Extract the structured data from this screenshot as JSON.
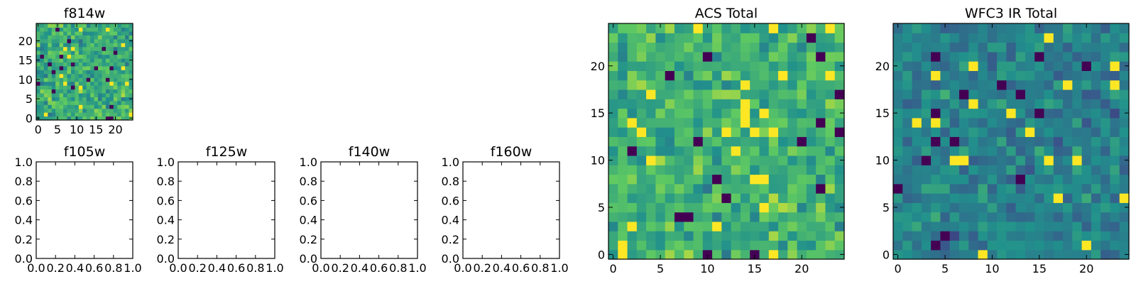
{
  "palette": [
    "#440154",
    "#3b528b",
    "#21918c",
    "#5ec962",
    "#fde725"
  ],
  "chart_data": [
    {
      "id": "f814w",
      "type": "heatmap",
      "title": "f814w",
      "grid_size": 25,
      "xlim": [
        0,
        25
      ],
      "ylim": [
        0,
        25
      ],
      "xticks": [
        0,
        5,
        10,
        15,
        20
      ],
      "yticks": [
        0,
        5,
        10,
        15,
        20
      ],
      "xtick_labels": [
        "0",
        "5",
        "10",
        "15",
        "20"
      ],
      "ytick_labels": [
        "0",
        "5",
        "10",
        "15",
        "20"
      ],
      "pixel_distribution": "noise",
      "seed": 7,
      "mean": 0.62,
      "spread": 0.18
    },
    {
      "id": "f105w",
      "type": "empty",
      "title": "f105w",
      "xlim": [
        0,
        1
      ],
      "ylim": [
        0,
        1
      ],
      "xticks": [
        0,
        0.2,
        0.4,
        0.6,
        0.8,
        1.0
      ],
      "yticks": [
        0,
        0.2,
        0.4,
        0.6,
        0.8,
        1.0
      ],
      "xtick_labels": [
        "0.0",
        "0.2",
        "0.4",
        "0.6",
        "0.8",
        "1.0"
      ],
      "ytick_labels": [
        "0.0",
        "0.2",
        "0.4",
        "0.6",
        "0.8",
        "1.0"
      ]
    },
    {
      "id": "f125w",
      "type": "empty",
      "title": "f125w",
      "xlim": [
        0,
        1
      ],
      "ylim": [
        0,
        1
      ],
      "xticks": [
        0,
        0.2,
        0.4,
        0.6,
        0.8,
        1.0
      ],
      "yticks": [
        0,
        0.2,
        0.4,
        0.6,
        0.8,
        1.0
      ],
      "xtick_labels": [
        "0.0",
        "0.2",
        "0.4",
        "0.6",
        "0.8",
        "1.0"
      ],
      "ytick_labels": [
        "0.0",
        "0.2",
        "0.4",
        "0.6",
        "0.8",
        "1.0"
      ]
    },
    {
      "id": "f140w",
      "type": "empty",
      "title": "f140w",
      "xlim": [
        0,
        1
      ],
      "ylim": [
        0,
        1
      ],
      "xticks": [
        0,
        0.2,
        0.4,
        0.6,
        0.8,
        1.0
      ],
      "yticks": [
        0,
        0.2,
        0.4,
        0.6,
        0.8,
        1.0
      ],
      "xtick_labels": [
        "0.0",
        "0.2",
        "0.4",
        "0.6",
        "0.8",
        "1.0"
      ],
      "ytick_labels": [
        "0.0",
        "0.2",
        "0.4",
        "0.6",
        "0.8",
        "1.0"
      ]
    },
    {
      "id": "f160w",
      "type": "empty",
      "title": "f160w",
      "xlim": [
        0,
        1
      ],
      "ylim": [
        0,
        1
      ],
      "xticks": [
        0,
        0.2,
        0.4,
        0.6,
        0.8,
        1.0
      ],
      "yticks": [
        0,
        0.2,
        0.4,
        0.6,
        0.8,
        1.0
      ],
      "xtick_labels": [
        "0.0",
        "0.2",
        "0.4",
        "0.6",
        "0.8",
        "1.0"
      ],
      "ytick_labels": [
        "0.0",
        "0.2",
        "0.4",
        "0.6",
        "0.8",
        "1.0"
      ]
    },
    {
      "id": "acs-total",
      "type": "heatmap",
      "title": "ACS Total",
      "grid_size": 25,
      "xlim": [
        0,
        25
      ],
      "ylim": [
        0,
        25
      ],
      "xticks": [
        0,
        5,
        10,
        15,
        20
      ],
      "yticks": [
        0,
        5,
        10,
        15,
        20
      ],
      "xtick_labels": [
        "0",
        "5",
        "10",
        "15",
        "20"
      ],
      "ytick_labels": [
        "0",
        "5",
        "10",
        "15",
        "20"
      ],
      "pixel_distribution": "noise",
      "seed": 23,
      "mean": 0.64,
      "spread": 0.17
    },
    {
      "id": "wfc3-ir-total",
      "type": "heatmap",
      "title": "WFC3 IR Total",
      "grid_size": 25,
      "xlim": [
        0,
        25
      ],
      "ylim": [
        0,
        25
      ],
      "xticks": [
        0,
        5,
        10,
        15,
        20
      ],
      "yticks": [
        0,
        5,
        10,
        15,
        20
      ],
      "xtick_labels": [
        "0",
        "5",
        "10",
        "15",
        "20"
      ],
      "ytick_labels": [
        "0",
        "5",
        "10",
        "15",
        "20"
      ],
      "pixel_distribution": "noise",
      "seed": 41,
      "mean": 0.44,
      "spread": 0.14
    }
  ]
}
